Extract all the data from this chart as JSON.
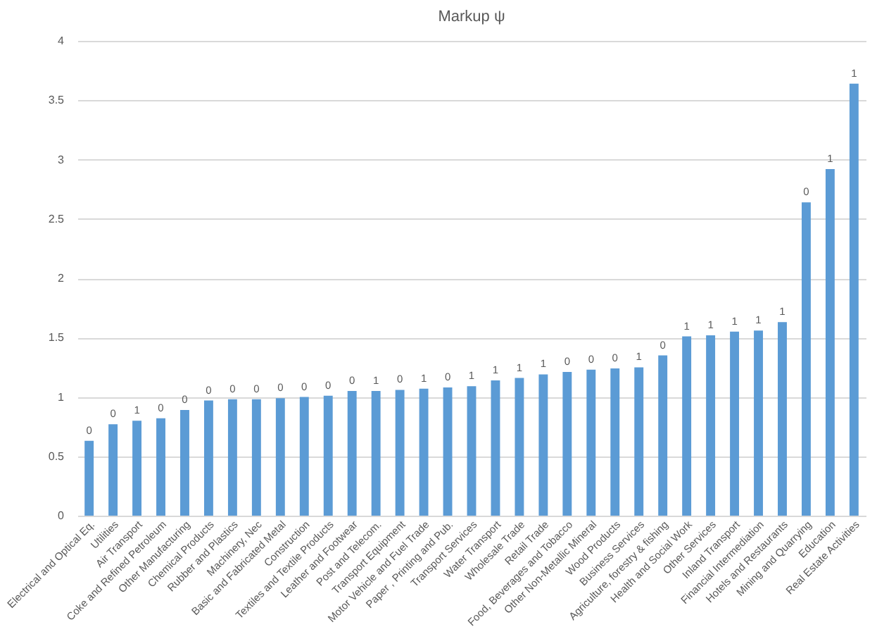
{
  "chart_data": {
    "type": "bar",
    "title": "Markup ψ",
    "categories": [
      "Electrical and Optical Eq.",
      "Utilities",
      "Air Transport",
      "Coke and Refined Petroleum",
      "Other Manufacturing",
      "Chemical Products",
      "Rubber and Plastics",
      "Machinery, Nec",
      "Basic and Fabricated Metal",
      "Construction",
      "Textiles and Textile Products",
      "Leather and Footwear",
      "Post and Telecom.",
      "Transport Equipment",
      "Motor Vehicle and Fuel Trade",
      "Paper , Printing and Pub.",
      "Transport Services",
      "Water Transport",
      "Wholesale Trade",
      "Retail Trade",
      "Food, Beverages and Tobacco",
      "Other Non-Metallic Mineral",
      "Wood Products",
      "Business Services",
      "Agriculture, forestry & fishing",
      "Health and Social Work",
      "Other Services",
      "Inland Transport",
      "Financial Intermediation",
      "Hotels and Restaurants",
      "Mining and Quarrying",
      "Education",
      "Real Estate Activities"
    ],
    "values": [
      0.63,
      0.77,
      0.8,
      0.82,
      0.89,
      0.97,
      0.98,
      0.98,
      0.99,
      1.0,
      1.01,
      1.05,
      1.05,
      1.06,
      1.07,
      1.08,
      1.09,
      1.14,
      1.16,
      1.19,
      1.21,
      1.23,
      1.24,
      1.25,
      1.35,
      1.51,
      1.52,
      1.55,
      1.56,
      1.63,
      2.64,
      2.92,
      3.64
    ],
    "annotations": [
      {
        "text": "0",
        "x": "Electrical and Optical Eq.",
        "y": 0.63
      },
      {
        "text": "0",
        "x": "Utilities",
        "y": 0.77
      },
      {
        "text": "1",
        "x": "Air Transport",
        "y": 0.8
      },
      {
        "text": "0",
        "x": "Coke and Refined Petroleum",
        "y": 0.82
      },
      {
        "text": "0",
        "x": "Other Manufacturing",
        "y": 0.89
      },
      {
        "text": "0",
        "x": "Chemical Products",
        "y": 0.97
      },
      {
        "text": "0",
        "x": "Rubber and Plastics",
        "y": 0.98
      },
      {
        "text": "0",
        "x": "Machinery, Nec",
        "y": 0.98
      },
      {
        "text": "0",
        "x": "Basic and Fabricated Metal",
        "y": 0.99
      },
      {
        "text": "0",
        "x": "Construction",
        "y": 1.0
      },
      {
        "text": "0",
        "x": "Textiles and Textile Products",
        "y": 1.01
      },
      {
        "text": "0",
        "x": "Leather and Footwear",
        "y": 1.05
      },
      {
        "text": "1",
        "x": "Post and Telecom.",
        "y": 1.05
      },
      {
        "text": "0",
        "x": "Transport Equipment",
        "y": 1.06
      },
      {
        "text": "1",
        "x": "Motor Vehicle and Fuel Trade",
        "y": 1.07
      },
      {
        "text": "0",
        "x": "Paper , Printing and Pub.",
        "y": 1.08
      },
      {
        "text": "1",
        "x": "Transport Services",
        "y": 1.09
      },
      {
        "text": "1",
        "x": "Water Transport",
        "y": 1.14
      },
      {
        "text": "1",
        "x": "Wholesale Trade",
        "y": 1.16
      },
      {
        "text": "1",
        "x": "Retail Trade",
        "y": 1.19
      },
      {
        "text": "0",
        "x": "Food, Beverages and Tobacco",
        "y": 1.21
      },
      {
        "text": "0",
        "x": "Other Non-Metallic Mineral",
        "y": 1.23
      },
      {
        "text": "0",
        "x": "Wood Products",
        "y": 1.24
      },
      {
        "text": "1",
        "x": "Business Services",
        "y": 1.25
      },
      {
        "text": "0",
        "x": "Agriculture, forestry & fishing",
        "y": 1.35
      },
      {
        "text": "1",
        "x": "Health and Social Work",
        "y": 1.51
      },
      {
        "text": "1",
        "x": "Other Services",
        "y": 1.52
      },
      {
        "text": "1",
        "x": "Inland Transport",
        "y": 1.55
      },
      {
        "text": "1",
        "x": "Financial Intermediation",
        "y": 1.56
      },
      {
        "text": "1",
        "x": "Hotels and Restaurants",
        "y": 1.63
      },
      {
        "text": "0",
        "x": "Mining and Quarrying",
        "y": 2.64
      },
      {
        "text": "1",
        "x": "Education",
        "y": 2.92
      },
      {
        "text": "1",
        "x": "Real Estate Activities",
        "y": 3.64
      }
    ],
    "color": "#5b9bd5",
    "ylim": [
      0,
      4
    ],
    "yticks": [
      0,
      0.5,
      1,
      1.5,
      2,
      2.5,
      3,
      3.5,
      4
    ],
    "grid": "y"
  }
}
